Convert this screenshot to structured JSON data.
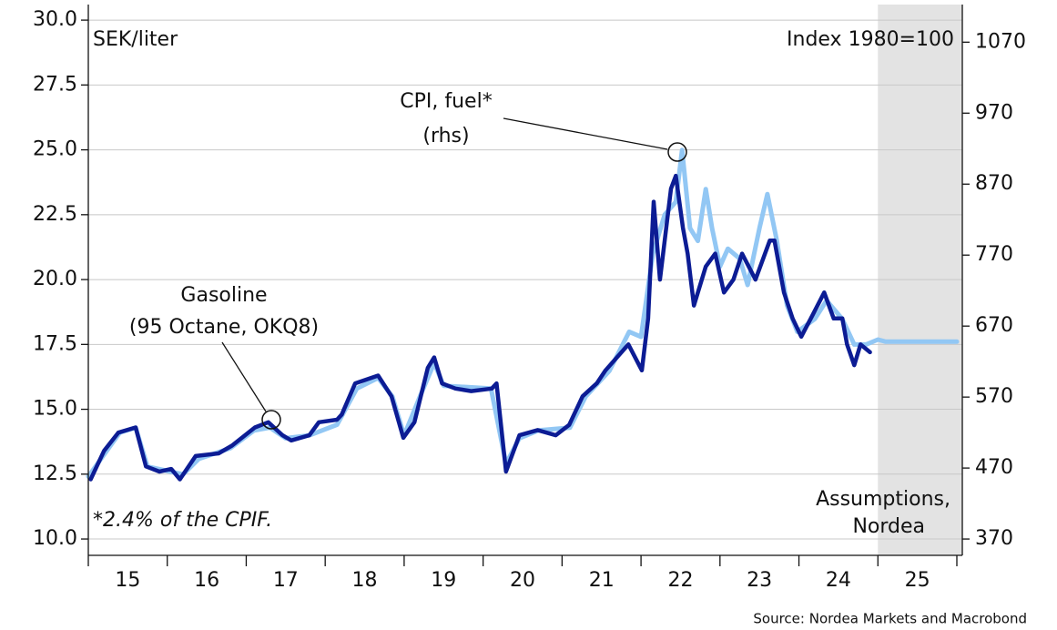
{
  "chart_data": {
    "type": "line",
    "y_label": "SEK/liter",
    "y2_label": "Index 1980=100",
    "source": "Source: Nordea Markets and Macrobond",
    "footnote": "*2.4% of the CPIF.",
    "annotations": [
      {
        "lines": [
          "CPI, fuel*",
          "(rhs)"
        ]
      },
      {
        "lines": [
          "Gasoline",
          "(95 Octane, OKQ8)"
        ]
      },
      {
        "lines": [
          "Assumptions,",
          "Nordea"
        ]
      }
    ],
    "shade": {
      "range": [
        2025,
        2026
      ],
      "color": "#e3e3e3"
    },
    "xlim": [
      2015,
      2026
    ],
    "xticks": [
      {
        "value": 2015.5,
        "label": "15"
      },
      {
        "value": 2016.5,
        "label": "16"
      },
      {
        "value": 2017.5,
        "label": "17"
      },
      {
        "value": 2018.5,
        "label": "18"
      },
      {
        "value": 2019.5,
        "label": "19"
      },
      {
        "value": 2020.5,
        "label": "20"
      },
      {
        "value": 2021.5,
        "label": "21"
      },
      {
        "value": 2022.5,
        "label": "22"
      },
      {
        "value": 2023.5,
        "label": "23"
      },
      {
        "value": 2024.5,
        "label": "24"
      },
      {
        "value": 2025.5,
        "label": "25"
      }
    ],
    "xminor_ticks": [
      2015,
      2016,
      2017,
      2018,
      2019,
      2020,
      2021,
      2022,
      2023,
      2024,
      2025,
      2026
    ],
    "ylim": [
      9.37,
      30.6
    ],
    "yticks": [
      {
        "value": 10,
        "label": "10.0"
      },
      {
        "value": 12.5,
        "label": "12.5"
      },
      {
        "value": 15,
        "label": "15.0"
      },
      {
        "value": 17.5,
        "label": "17.5"
      },
      {
        "value": 20,
        "label": "20.0"
      },
      {
        "value": 22.5,
        "label": "22.5"
      },
      {
        "value": 25,
        "label": "25.0"
      },
      {
        "value": 27.5,
        "label": "27.5"
      },
      {
        "value": 30,
        "label": "30.0"
      }
    ],
    "y2lim": [
      347,
      1123
    ],
    "y2ticks": [
      370,
      470,
      570,
      670,
      770,
      870,
      970,
      1070
    ],
    "grid": true,
    "series": [
      {
        "name": "CPI, fuel*",
        "axis": "y2",
        "color": "#92c7f4",
        "x": [
          2015.0,
          2015.4,
          2015.6,
          2015.75,
          2016.2,
          2016.4,
          2016.8,
          2017.1,
          2017.3,
          2017.5,
          2017.8,
          2018.15,
          2018.4,
          2018.67,
          2018.85,
          2019.0,
          2019.2,
          2019.38,
          2019.5,
          2020.1,
          2020.29,
          2020.46,
          2020.7,
          2021.1,
          2021.3,
          2021.6,
          2021.85,
          2022.0,
          2022.15,
          2022.3,
          2022.44,
          2022.52,
          2022.62,
          2022.72,
          2022.82,
          2022.9,
          2023.0,
          2023.1,
          2023.25,
          2023.35,
          2023.5,
          2023.6,
          2023.72,
          2023.85,
          2023.98,
          2024.2,
          2024.35,
          2024.55,
          2024.7,
          2024.85,
          2025.0,
          2025.1,
          2026.0
        ],
        "values": [
          458,
          520,
          527,
          472,
          461,
          483,
          498,
          523,
          527,
          512,
          516,
          531,
          582,
          597,
          571,
          516,
          571,
          618,
          586,
          582,
          476,
          512,
          523,
          527,
          571,
          607,
          662,
          655,
          772,
          827,
          845,
          918,
          808,
          790,
          863,
          808,
          754,
          779,
          765,
          728,
          808,
          856,
          790,
          699,
          662,
          680,
          706,
          680,
          644,
          644,
          651,
          648,
          648
        ]
      },
      {
        "name": "Gasoline",
        "color": "#0c1c94",
        "x": [
          2015.03,
          2015.2,
          2015.38,
          2015.6,
          2015.73,
          2015.9,
          2016.05,
          2016.16,
          2016.36,
          2016.65,
          2016.82,
          2017.11,
          2017.28,
          2017.46,
          2017.57,
          2017.8,
          2017.92,
          2018.15,
          2018.21,
          2018.38,
          2018.67,
          2018.84,
          2018.99,
          2019.13,
          2019.3,
          2019.38,
          2019.48,
          2019.65,
          2019.85,
          2020.11,
          2020.17,
          2020.29,
          2020.46,
          2020.69,
          2020.92,
          2021.09,
          2021.26,
          2021.44,
          2021.55,
          2021.84,
          2022.01,
          2022.09,
          2022.16,
          2022.24,
          2022.38,
          2022.44,
          2022.53,
          2022.59,
          2022.67,
          2022.82,
          2022.94,
          2023.05,
          2023.17,
          2023.28,
          2023.45,
          2023.63,
          2023.69,
          2023.81,
          2023.92,
          2024.03,
          2024.15,
          2024.32,
          2024.44,
          2024.55,
          2024.61,
          2024.7,
          2024.78,
          2024.9
        ],
        "values": [
          12.3,
          13.4,
          14.1,
          14.3,
          12.8,
          12.6,
          12.7,
          12.3,
          13.2,
          13.3,
          13.6,
          14.3,
          14.5,
          14.0,
          13.8,
          14.0,
          14.5,
          14.6,
          14.8,
          16.0,
          16.3,
          15.5,
          13.9,
          14.5,
          16.6,
          17.0,
          16.0,
          15.8,
          15.7,
          15.8,
          16.0,
          12.6,
          14.0,
          14.2,
          14.0,
          14.4,
          15.5,
          16.0,
          16.5,
          17.5,
          16.5,
          18.5,
          23.0,
          20.0,
          23.5,
          24.0,
          22.0,
          21.0,
          19.0,
          20.5,
          21.0,
          19.5,
          20.0,
          21.0,
          20.0,
          21.5,
          21.5,
          19.5,
          18.5,
          17.8,
          18.5,
          19.5,
          18.5,
          18.5,
          17.5,
          16.7,
          17.5,
          17.2
        ]
      }
    ]
  }
}
